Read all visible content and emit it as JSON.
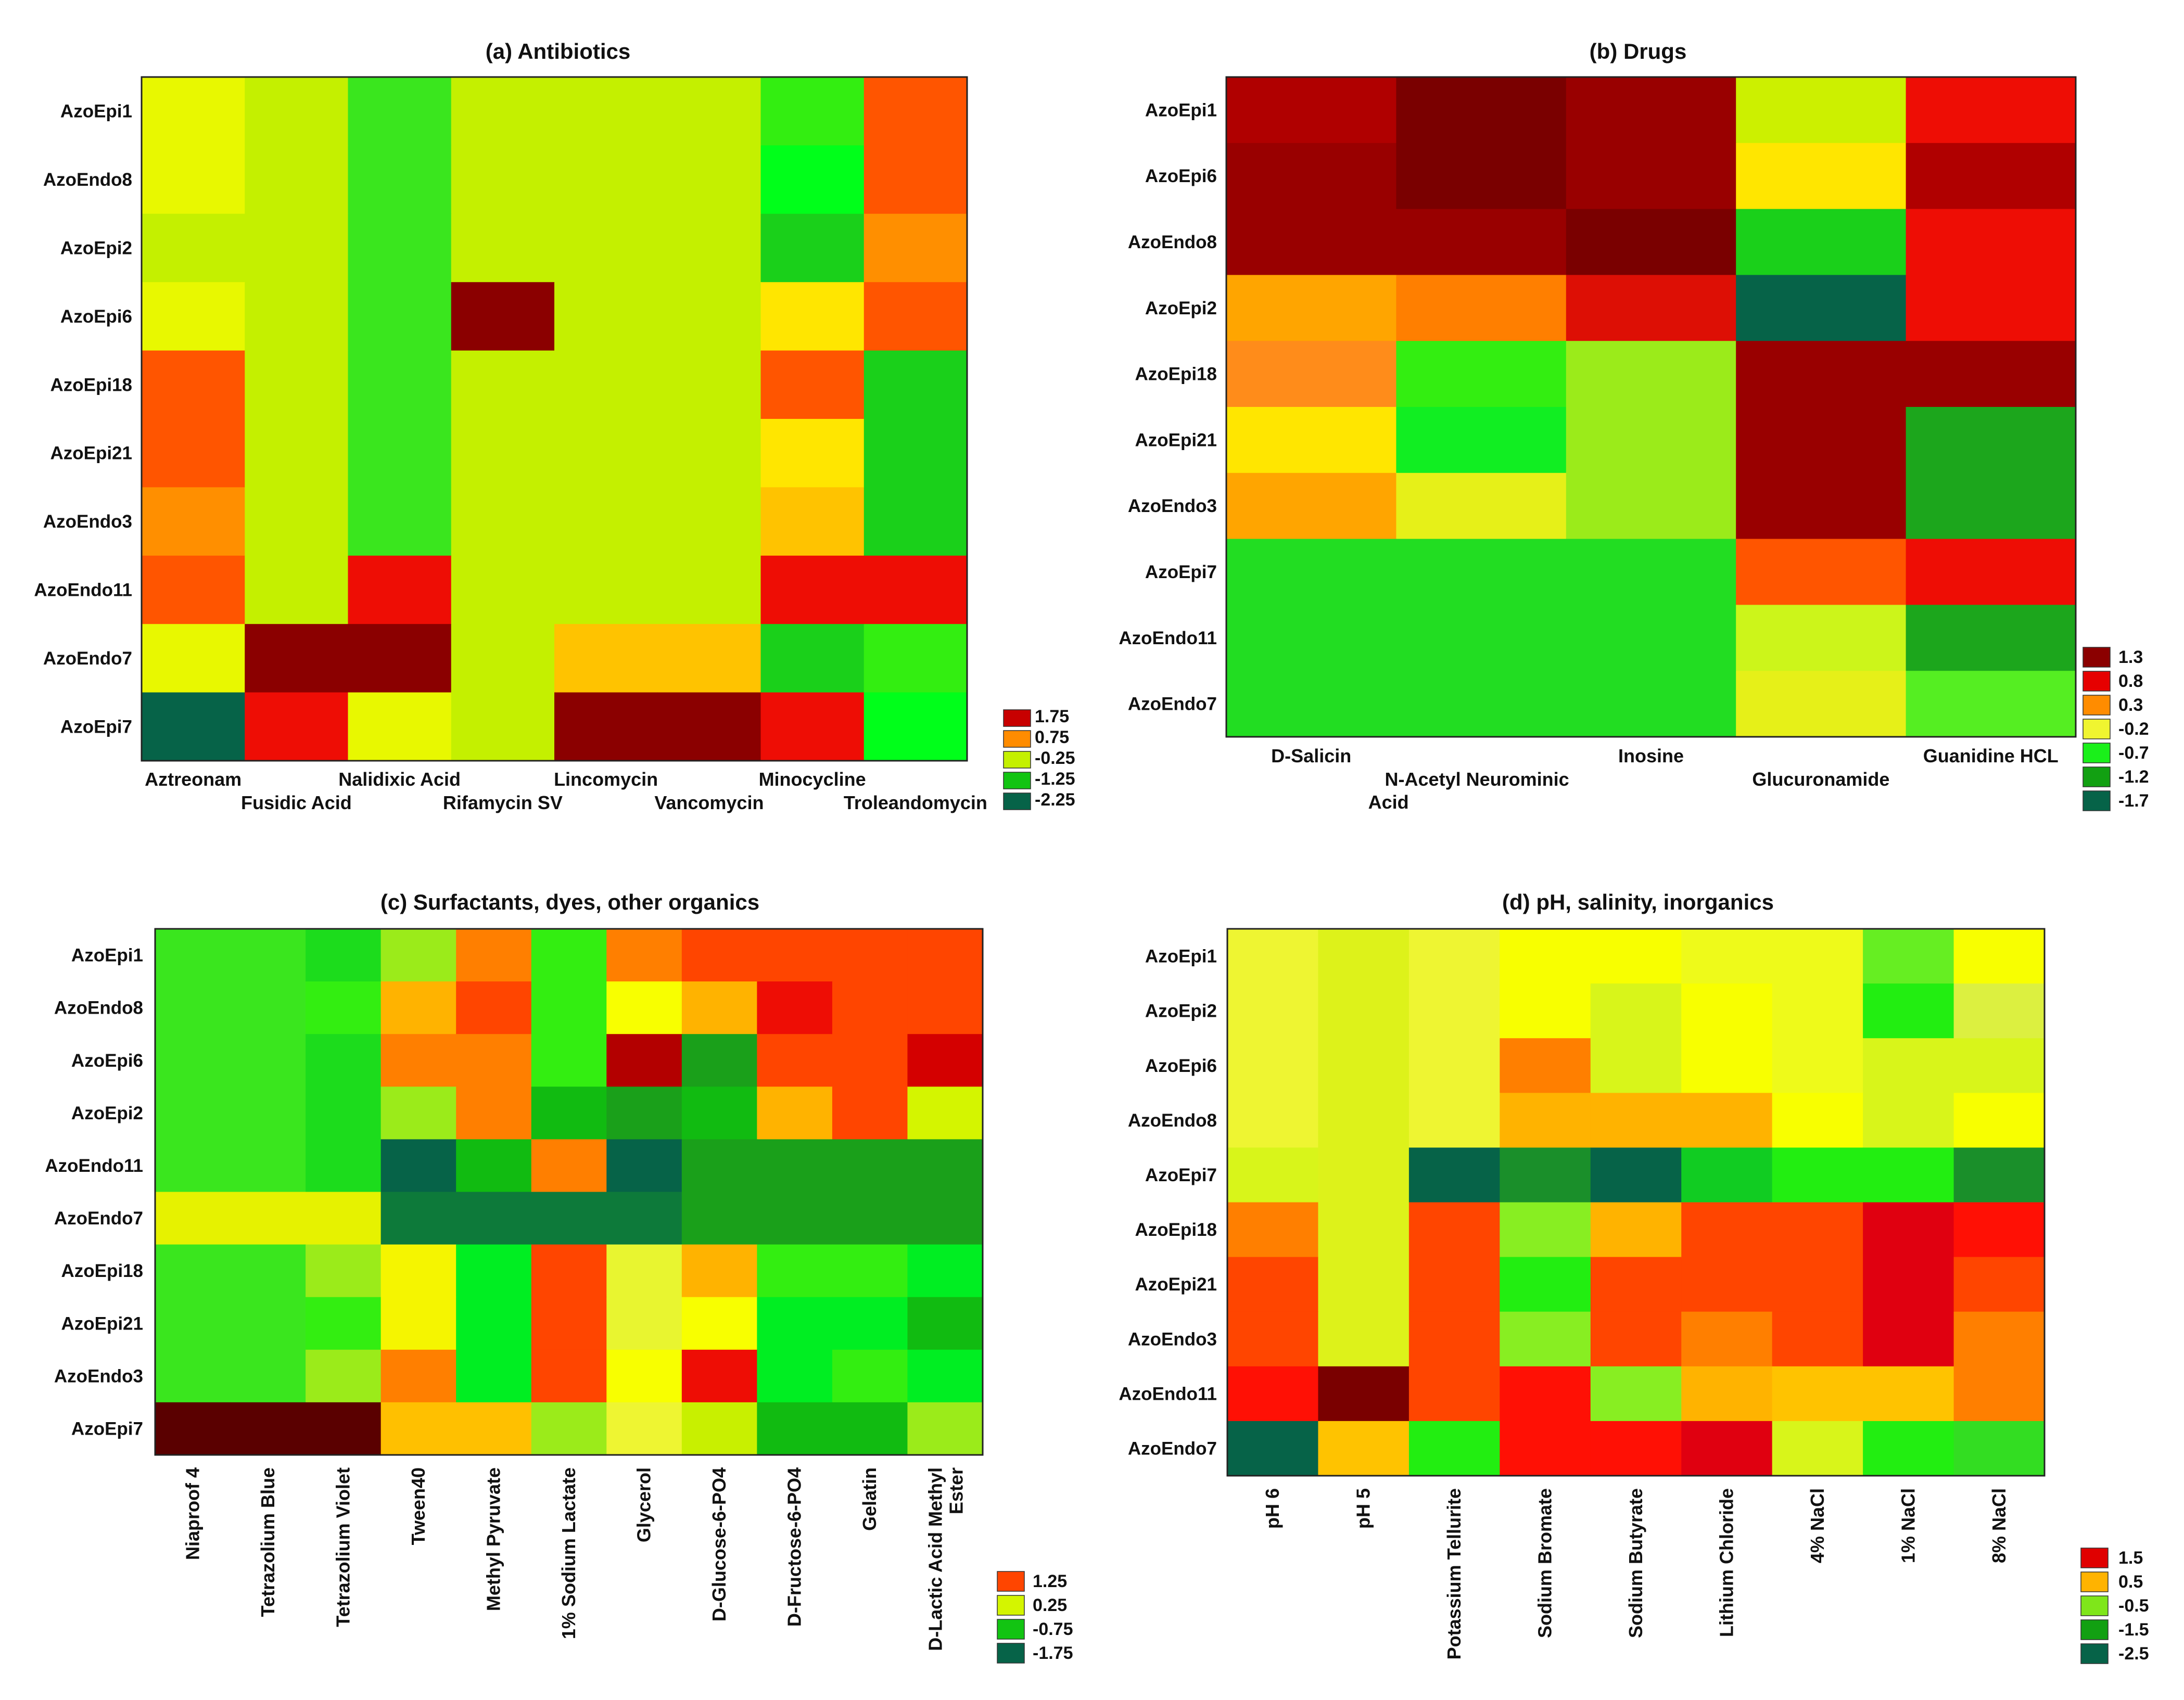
{
  "figure": {
    "background": "#ffffff"
  },
  "chart_data": [
    {
      "id": "a",
      "type": "heatmap",
      "title": "(a) Antibiotics",
      "rows": [
        "AzoEpi1",
        "AzoEndo8",
        "AzoEpi2",
        "AzoEpi6",
        "AzoEpi18",
        "AzoEpi21",
        "AzoEndo3",
        "AzoEndo11",
        "AzoEndo7",
        "AzoEpi7"
      ],
      "columns": [
        "Aztreonam",
        "Fusidic Acid",
        "Nalidixic Acid",
        "Rifamycin SV",
        "Lincomycin",
        "Vancomycin",
        "Minocycline",
        "Troleandomycin"
      ],
      "column_label_style": "staggered",
      "legend": {
        "labels": [
          "1.75",
          "0.75",
          "-0.25",
          "-1.25",
          "-2.25"
        ],
        "colors": [
          "#C80000",
          "#FF8C00",
          "#C4F000",
          "#12C412",
          "#066348"
        ]
      },
      "palette": {
        "A": "#E8F800",
        "B": "#C4F000",
        "C": "#3AE61E",
        "D": "#8B0000",
        "E": "#FF5500",
        "F": "#FF8F00",
        "G": "#FFE600",
        "H": "#1AD01A",
        "I": "#EE0D05",
        "J": "#066348",
        "K": "#33EE11",
        "L": "#FFC300",
        "M": "#00FF1A"
      },
      "cells": [
        "ABCBBBKE",
        "ABCBBBME",
        "BBCBBBHF",
        "ABCDBBGE",
        "EBCBBBEH",
        "EBCBBBGH",
        "FBCBBBLH",
        "EBIBBBII",
        "ADDBLLHK",
        "JIABDDIM"
      ]
    },
    {
      "id": "b",
      "type": "heatmap",
      "title": "(b) Drugs",
      "rows": [
        "AzoEpi1",
        "AzoEpi6",
        "AzoEndo8",
        "AzoEpi2",
        "AzoEpi18",
        "AzoEpi21",
        "AzoEndo3",
        "AzoEpi7",
        "AzoEndo11",
        "AzoEndo7"
      ],
      "row_weights": [
        1,
        1,
        1,
        1,
        1,
        1,
        1,
        1,
        1,
        1
      ],
      "columns": [
        "D-Salicin",
        "N-Acetyl Neurominic Acid",
        "Inosine",
        "Glucuronamide",
        "Guanidine HCL"
      ],
      "column_label_style": "staggered",
      "legend": {
        "labels": [
          "1.3",
          "0.8",
          "0.3",
          "-0.2",
          "-0.7",
          "-1.2",
          "-1.7"
        ],
        "colors": [
          "#8B0000",
          "#E60000",
          "#FF8C00",
          "#F0F530",
          "#1AF01A",
          "#12A012",
          "#066348"
        ]
      },
      "palette": {
        "R": "#B00000",
        "D": "#8B0000",
        "W": "#7A0000",
        "X": "#990000",
        "I": "#EE0D05",
        "Y": "#DD0F05",
        "F": "#FFA500",
        "O": "#FF7F00",
        "Z": "#FF8C1A",
        "G": "#FFE600",
        "S": "#CCF000",
        "L": "#E6F018",
        "K": "#33EE11",
        "M": "#11EE22",
        "Q": "#9BEB1A",
        "H": "#1AD01A",
        "N": "#22DD22",
        "V": "#1CA61C",
        "J": "#066348",
        "T": "#CCF51A",
        "P": "#55EE22",
        "E": "#FF5500"
      },
      "cells": [
        "RWXSI",
        "XWXGR",
        "XXWHI",
        "FOYJI",
        "ZKQXX",
        "GMQXV",
        "FLQXV",
        "NNNEI",
        "NNNTV",
        "NNNLP"
      ]
    },
    {
      "id": "c",
      "type": "heatmap",
      "title": "(c) Surfactants, dyes, other organics",
      "rows": [
        "AzoEpi1",
        "AzoEndo8",
        "AzoEpi6",
        "AzoEpi2",
        "AzoEndo11",
        "AzoEndo7",
        "AzoEpi18",
        "AzoEpi21",
        "AzoEndo3",
        "AzoEpi7"
      ],
      "columns": [
        "Niaproof 4",
        "Tetrazolium Blue",
        "Tetrazolium Violet",
        "Tween40",
        "Methyl Pyruvate",
        "1% Sodium Lactate",
        "Glycerol",
        "D-Glucose-6-PO4",
        "D-Fructose-6-PO4",
        "Gelatin",
        "D-Lactic Acid Methyl Ester"
      ],
      "column_label_style": "rotated",
      "legend": {
        "labels": [
          "1.25",
          "0.25",
          "-0.75",
          "-1.75"
        ],
        "colors": [
          "#FF4500",
          "#D4F500",
          "#12C412",
          "#066348"
        ]
      },
      "palette": {
        "a": "#3AE61E",
        "b": "#33EE11",
        "c": "#1CDC1C",
        "d": "#22CC22",
        "e": "#9BEB1A",
        "f": "#FF7F00",
        "g": "#FF4500",
        "h": "#FFB300",
        "i": "#F5F500",
        "j": "#EE0D05",
        "k": "#B30000",
        "l": "#D40000",
        "m": "#1AA01A",
        "n": "#11BB11",
        "o": "#066348",
        "p": "#0D7A3A",
        "q": "#E6F200",
        "r": "#5A0000",
        "s": "#FFC000",
        "t": "#C8F000",
        "u": "#D4F500",
        "v": "#00EE22",
        "w": "#F8FF00",
        "x": "#E8F530",
        "y": "#EEF532"
      },
      "cells": [
        "aacefbfgggg",
        "aabhgbwhjgg",
        "aacffbkmggl",
        "aacefnmnhgu",
        "aaconfommmm",
        "qqqppppmmmm",
        "aaeivgxhbbv",
        "aabivgxwvvn",
        "aaefvgwjvbv",
        "rrrsseytnne"
      ]
    },
    {
      "id": "d",
      "type": "heatmap",
      "title": "(d) pH, salinity, inorganics",
      "rows": [
        "AzoEpi1",
        "AzoEpi2",
        "AzoEpi6",
        "AzoEndo8",
        "AzoEpi7",
        "AzoEpi18",
        "AzoEpi21",
        "AzoEndo3",
        "AzoEndo11",
        "AzoEndo7"
      ],
      "columns": [
        "pH 6",
        "pH 5",
        "Potassium Tellurite",
        "Sodium Bromate",
        "Sodium Butyrate",
        "Lithium Chloride",
        "4% NaCl",
        "1% NaCl",
        "8% NaCl"
      ],
      "column_label_style": "rotated",
      "legend": {
        "labels": [
          "1.5",
          "0.5",
          "-0.5",
          "-1.5",
          "-2.5"
        ],
        "colors": [
          "#E00000",
          "#FFB300",
          "#7FE61A",
          "#12A012",
          "#066348"
        ]
      },
      "palette": {
        "y": "#EEF532",
        "z": "#DDF21A",
        "x": "#F8FF00",
        "w": "#EEFA1A",
        "s": "#66EE22",
        "b": "#22EE11",
        "c": "#D8F51A",
        "d": "#DCF040",
        "f": "#FF7F00",
        "h": "#FFB300",
        "o": "#066348",
        "p": "#1A8F2A",
        "n": "#11CC22",
        "g": "#FF4500",
        "j": "#E00010",
        "r": "#7A0000",
        "l": "#FF1005",
        "q": "#33DD22",
        "k": "#FFC300",
        "t": "#88EE22",
        "u": "#1AD01A"
      },
      "cells": [
        "yzyxxwwsx",
        "yzyxcxwbd",
        "yzyfcxwcc",
        "yzyhhhxcx",
        "czoponbbp",
        "fzgthggjl",
        "gzgbgggjg",
        "gzgtgfgjf",
        "lrglthkkf",
        "okblljcbq"
      ]
    }
  ]
}
